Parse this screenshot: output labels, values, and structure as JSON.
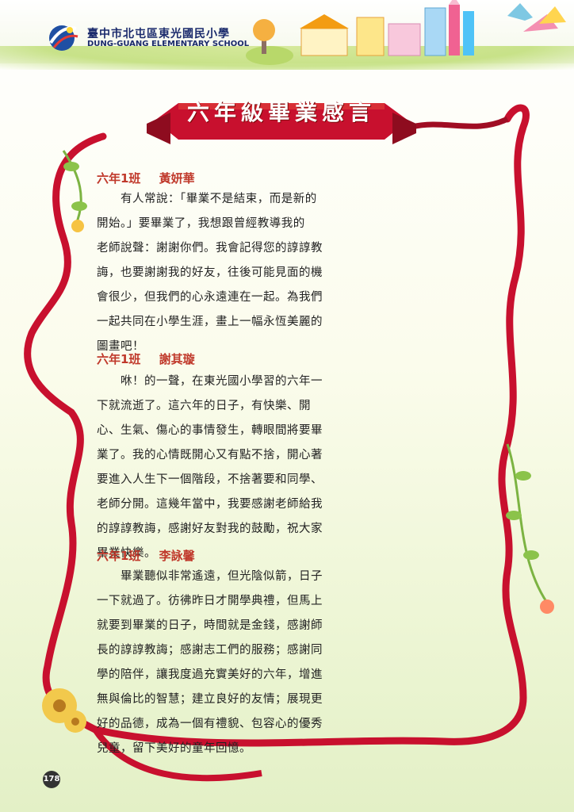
{
  "header": {
    "school_name_cn": "臺中市北屯區東光國民小學",
    "school_name_en": "DUNG-GUANG ELEMENTARY SCHOOL"
  },
  "page_title": "六年級畢業感言",
  "sections": [
    {
      "class_label": "六年1班",
      "author": "黃妍華",
      "lines": [
        "　　有人常說：「畢業不是結束，而是新的",
        "開始。」要畢業了，我想跟曾經教導我的",
        "老師說聲：謝謝你們。我會記得您的諄諄教",
        "誨，也要謝謝我的好友，往後可能見面的機",
        "會很少，但我們的心永遠連在一起。為我們",
        "一起共同在小學生涯，畫上一幅永恆美麗的",
        "圖畫吧！"
      ]
    },
    {
      "class_label": "六年1班",
      "author": "謝其璇",
      "lines": [
        "　　咻！的一聲，在東光國小學習的六年一",
        "下就流逝了。這六年的日子，有快樂、開",
        "心、生氣、傷心的事情發生，轉眼間將要畢",
        "業了。我的心情既開心又有點不捨，開心著",
        "要進入人生下一個階段，不捨著要和同學、",
        "老師分開。這幾年當中，我要感謝老師給我",
        "的諄諄教誨，感謝好友對我的鼓勵，祝大家",
        "畢業快樂。"
      ]
    },
    {
      "class_label": "六年1班",
      "author": "李詠馨",
      "lines": [
        "　　畢業聽似非常遙遠，但光陰似箭，日子",
        "一下就過了。彷彿昨日才開學典禮，但馬上",
        "就要到畢業的日子，時間就是金錢，感謝師",
        "長的諄諄教誨；感謝志工們的服務；感謝同",
        "學的陪伴，讓我度過充實美好的六年，增進",
        "無與倫比的智慧；建立良好的友情；展現更",
        "好的品德，成為一個有禮貌、包容心的優秀",
        "兒童，留下美好的童年回憶。"
      ]
    }
  ],
  "page_number": "178",
  "colors": {
    "ribbon": "#c8102e",
    "title": "#c0392b"
  }
}
